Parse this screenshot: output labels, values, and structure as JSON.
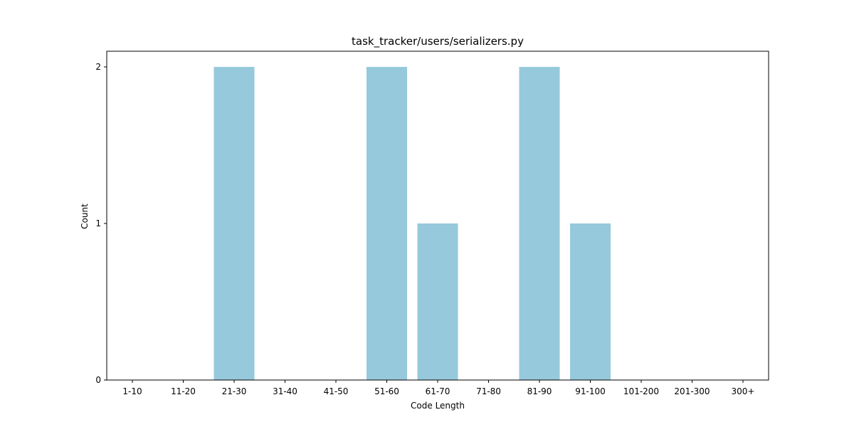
{
  "chart_data": {
    "type": "bar",
    "title": "task_tracker/users/serializers.py",
    "xlabel": "Code Length",
    "ylabel": "Count",
    "categories": [
      "1-10",
      "11-20",
      "21-30",
      "31-40",
      "41-50",
      "51-60",
      "61-70",
      "71-80",
      "81-90",
      "91-100",
      "101-200",
      "201-300",
      "300+"
    ],
    "values": [
      0,
      0,
      2,
      0,
      0,
      2,
      1,
      0,
      2,
      1,
      0,
      0,
      0
    ],
    "yticks": [
      0,
      1,
      2
    ],
    "ylim": [
      0,
      2.1
    ],
    "grid": false,
    "bar_color": "#96c9dc"
  }
}
